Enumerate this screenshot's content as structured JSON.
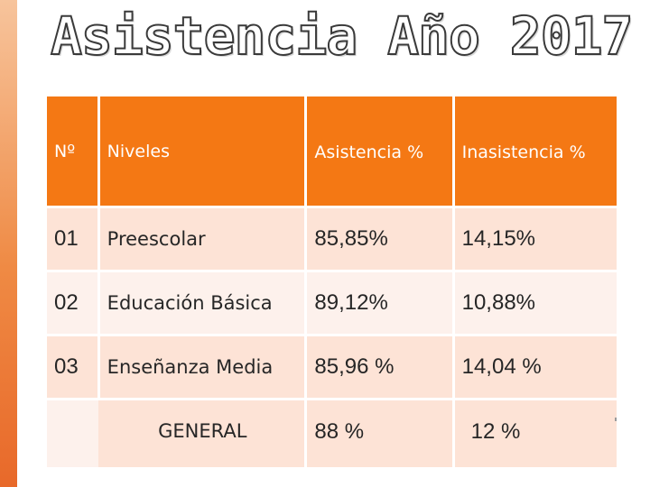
{
  "slide": {
    "title": "Asistencia Año 2017"
  },
  "table": {
    "headers": {
      "number": "Nº",
      "level": "Niveles",
      "attendance": "Asistencia %",
      "non_attendance": "Inasistencia %"
    },
    "rows": [
      {
        "number": "01",
        "level": "Preescolar",
        "attendance": "85,85%",
        "non_attendance": "14,15%"
      },
      {
        "number": "02",
        "level": "Educación  Básica",
        "attendance": "89,12%",
        "non_attendance": "10,88%"
      },
      {
        "number": "03",
        "level": "Enseñanza Media",
        "attendance": "85,96 %",
        "non_attendance": "14,04 %"
      }
    ],
    "total": {
      "label": "GENERAL",
      "attendance": "88 %",
      "non_attendance": "12 %"
    }
  },
  "colors": {
    "header_orange": "#f47814",
    "row_light": "#fde3d6",
    "row_lighter": "#fdf1ec",
    "accent_bar": "#ef8a44"
  }
}
